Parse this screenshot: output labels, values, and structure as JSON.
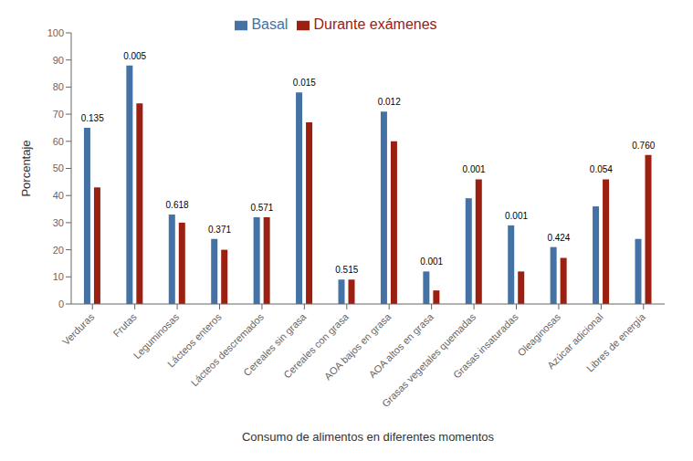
{
  "chart_data": {
    "type": "bar",
    "xlabel": "Consumo de alimentos en diferentes momentos",
    "ylabel": "Porcentaje",
    "categories": [
      "Verduras",
      "Frutas",
      "Leguminosas",
      "Lácteos enteros",
      "Lácteos descremados",
      "Cereales sin grasa",
      "Cereales con grasa",
      "AOA bajos en grasa",
      "AOA altos en grasa",
      "Grasas vegetales quemadas",
      "Grasas insaturadas",
      "Oleaginosas",
      "Azúcar adicional",
      "Libres de energía"
    ],
    "series": [
      {
        "name": "Basal",
        "color": "#4472a4",
        "values": [
          65,
          88,
          33,
          24,
          32,
          78,
          9,
          71,
          12,
          39,
          29,
          21,
          36,
          24
        ]
      },
      {
        "name": "Durante exámenes",
        "color": "#9b2012",
        "values": [
          43,
          74,
          30,
          20,
          32,
          67,
          9,
          60,
          5,
          46,
          12,
          17,
          46,
          55
        ]
      }
    ],
    "annotations": [
      "0.135",
      "0.005",
      "0.618",
      "0.371",
      "0.571",
      "0.015",
      "0.515",
      "0.012",
      "0.001",
      "0.001",
      "0.001",
      "0.424",
      "0.054",
      "0.760"
    ],
    "ylim": [
      0,
      100
    ],
    "yticks": [
      0,
      10,
      20,
      30,
      40,
      50,
      60,
      70,
      80,
      90,
      100
    ],
    "grid": false,
    "legend": "top"
  }
}
